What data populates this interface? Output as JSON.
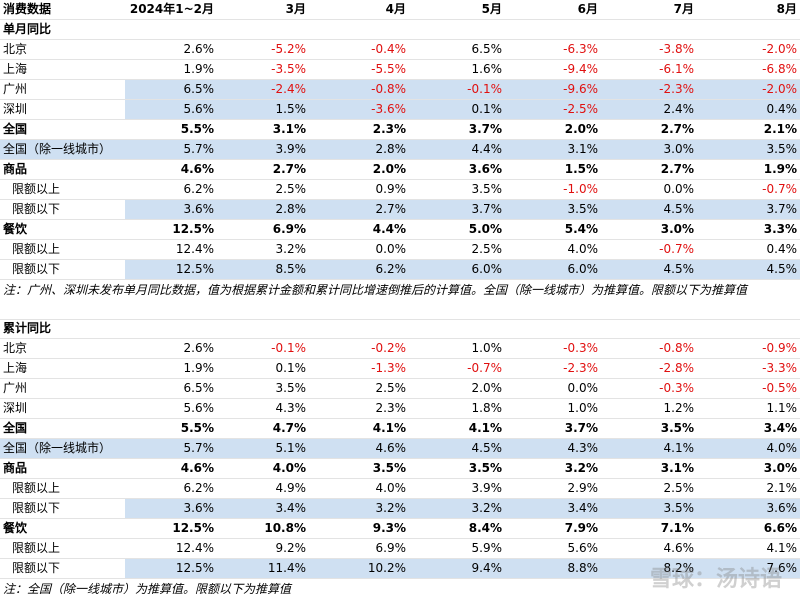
{
  "header": [
    "消费数据",
    "2024年1~2月",
    "3月",
    "4月",
    "5月",
    "6月",
    "7月",
    "8月"
  ],
  "sections": [
    {
      "title": "单月同比",
      "rows": [
        {
          "label": "北京",
          "values": [
            "2.6%",
            "-5.2%",
            "-0.4%",
            "6.5%",
            "-6.3%",
            "-3.8%",
            "-2.0%"
          ]
        },
        {
          "label": "上海",
          "values": [
            "1.9%",
            "-3.5%",
            "-5.5%",
            "1.6%",
            "-9.4%",
            "-6.1%",
            "-6.8%"
          ]
        },
        {
          "label": "广州",
          "values": [
            "6.5%",
            "-2.4%",
            "-0.8%",
            "-0.1%",
            "-9.6%",
            "-2.3%",
            "-2.0%"
          ],
          "shade": "values"
        },
        {
          "label": "深圳",
          "values": [
            "5.6%",
            "1.5%",
            "-3.6%",
            "0.1%",
            "-2.5%",
            "2.4%",
            "0.4%"
          ],
          "shade": "values"
        },
        {
          "label": "全国",
          "values": [
            "5.5%",
            "3.1%",
            "2.3%",
            "3.7%",
            "2.0%",
            "2.7%",
            "2.1%"
          ],
          "bold": true
        },
        {
          "label": "全国（除一线城市）",
          "values": [
            "5.7%",
            "3.9%",
            "2.8%",
            "4.4%",
            "3.1%",
            "3.0%",
            "3.5%"
          ],
          "shade": "all"
        },
        {
          "label": "商品",
          "values": [
            "4.6%",
            "2.7%",
            "2.0%",
            "3.6%",
            "1.5%",
            "2.7%",
            "1.9%"
          ],
          "bold": true
        },
        {
          "label": "限额以上",
          "values": [
            "6.2%",
            "2.5%",
            "0.9%",
            "3.5%",
            "-1.0%",
            "0.0%",
            "-0.7%"
          ],
          "indent": true
        },
        {
          "label": "限额以下",
          "values": [
            "3.6%",
            "2.8%",
            "2.7%",
            "3.7%",
            "3.5%",
            "4.5%",
            "3.7%"
          ],
          "indent": true,
          "shade": "values"
        },
        {
          "label": "餐饮",
          "values": [
            "12.5%",
            "6.9%",
            "4.4%",
            "5.0%",
            "5.4%",
            "3.0%",
            "3.3%"
          ],
          "bold": true
        },
        {
          "label": "限额以上",
          "values": [
            "12.4%",
            "3.2%",
            "0.0%",
            "2.5%",
            "4.0%",
            "-0.7%",
            "0.4%"
          ],
          "indent": true
        },
        {
          "label": "限额以下",
          "values": [
            "12.5%",
            "8.5%",
            "6.2%",
            "6.0%",
            "6.0%",
            "4.5%",
            "4.5%"
          ],
          "indent": true,
          "shade": "values"
        }
      ],
      "note": "注：广州、深圳未发布单月同比数据，值为根据累计金额和累计同比增速倒推后的计算值。全国（除一线城市）为推算值。限额以下为推算值"
    },
    {
      "title": "累计同比",
      "rows": [
        {
          "label": "北京",
          "values": [
            "2.6%",
            "-0.1%",
            "-0.2%",
            "1.0%",
            "-0.3%",
            "-0.8%",
            "-0.9%"
          ]
        },
        {
          "label": "上海",
          "values": [
            "1.9%",
            "0.1%",
            "-1.3%",
            "-0.7%",
            "-2.3%",
            "-2.8%",
            "-3.3%"
          ]
        },
        {
          "label": "广州",
          "values": [
            "6.5%",
            "3.5%",
            "2.5%",
            "2.0%",
            "0.0%",
            "-0.3%",
            "-0.5%"
          ]
        },
        {
          "label": "深圳",
          "values": [
            "5.6%",
            "4.3%",
            "2.3%",
            "1.8%",
            "1.0%",
            "1.2%",
            "1.1%"
          ]
        },
        {
          "label": "全国",
          "values": [
            "5.5%",
            "4.7%",
            "4.1%",
            "4.1%",
            "3.7%",
            "3.5%",
            "3.4%"
          ],
          "bold": true
        },
        {
          "label": "全国（除一线城市）",
          "values": [
            "5.7%",
            "5.1%",
            "4.6%",
            "4.5%",
            "4.3%",
            "4.1%",
            "4.0%"
          ],
          "shade": "all"
        },
        {
          "label": "商品",
          "values": [
            "4.6%",
            "4.0%",
            "3.5%",
            "3.5%",
            "3.2%",
            "3.1%",
            "3.0%"
          ],
          "bold": true
        },
        {
          "label": "限额以上",
          "values": [
            "6.2%",
            "4.9%",
            "4.0%",
            "3.9%",
            "2.9%",
            "2.5%",
            "2.1%"
          ],
          "indent": true
        },
        {
          "label": "限额以下",
          "values": [
            "3.6%",
            "3.4%",
            "3.2%",
            "3.2%",
            "3.4%",
            "3.5%",
            "3.6%"
          ],
          "indent": true,
          "shade": "values"
        },
        {
          "label": "餐饮",
          "values": [
            "12.5%",
            "10.8%",
            "9.3%",
            "8.4%",
            "7.9%",
            "7.1%",
            "6.6%"
          ],
          "bold": true
        },
        {
          "label": "限额以上",
          "values": [
            "12.4%",
            "9.2%",
            "6.9%",
            "5.9%",
            "5.6%",
            "4.6%",
            "4.1%"
          ],
          "indent": true
        },
        {
          "label": "限额以下",
          "values": [
            "12.5%",
            "11.4%",
            "10.2%",
            "9.4%",
            "8.8%",
            "8.2%",
            "7.6%"
          ],
          "indent": true,
          "shade": "values"
        }
      ],
      "note": "注：全国（除一线城市）为推算值。限额以下为推算值"
    }
  ],
  "watermark": "雪球：汤诗语"
}
